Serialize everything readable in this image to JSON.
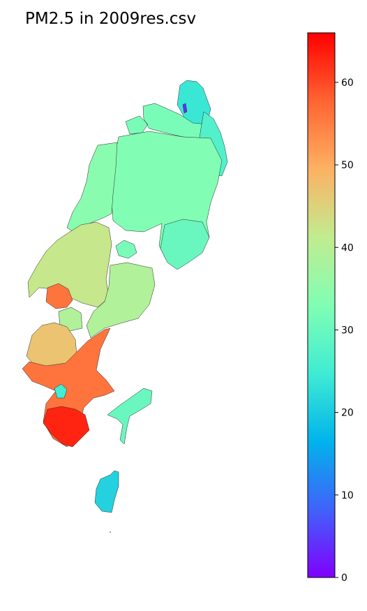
{
  "title": "PM2.5 in 2009res.csv",
  "colorbar": {
    "colormap": "rainbow",
    "min": 0,
    "max": 66,
    "ticks": [
      0,
      10,
      20,
      30,
      40,
      50,
      60
    ],
    "colors": [
      "#8000ff",
      "#4062fa",
      "#01b3ec",
      "#40ecd3",
      "#81feb4",
      "#c1ec8f",
      "#fdb164",
      "#ff6432",
      "#ff0000"
    ]
  },
  "regions": [
    {
      "id": "north-tip",
      "value": 24
    },
    {
      "id": "north-block",
      "value": 32
    },
    {
      "id": "north-east",
      "value": 27
    },
    {
      "id": "central-big",
      "value": 33
    },
    {
      "id": "central-west",
      "value": 34
    },
    {
      "id": "east-lobe",
      "value": 30
    },
    {
      "id": "small-island-mid",
      "value": 32
    },
    {
      "id": "west-coast-mid",
      "value": 42
    },
    {
      "id": "hotspot-mid",
      "value": 56
    },
    {
      "id": "south-central",
      "value": 39
    },
    {
      "id": "south-west-upper",
      "value": 47
    },
    {
      "id": "south-main",
      "value": 56
    },
    {
      "id": "south-tip",
      "value": 63
    },
    {
      "id": "south-small",
      "value": 25
    },
    {
      "id": "south-east-island",
      "value": 30
    },
    {
      "id": "southern-island",
      "value": 21
    },
    {
      "id": "anomaly-north",
      "value": 4
    }
  ]
}
